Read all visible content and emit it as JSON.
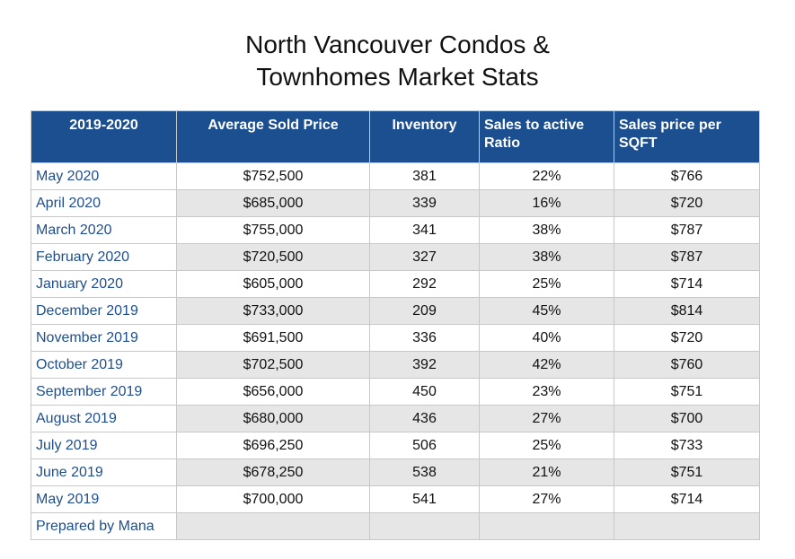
{
  "title": {
    "line1": "North Vancouver Condos &",
    "line2": "Townhomes Market Stats"
  },
  "table": {
    "headers": [
      "2019-2020",
      "Average Sold Price",
      "Inventory",
      "Sales to active Ratio",
      "Sales price per SQFT"
    ],
    "rows": [
      [
        "May 2020",
        "$752,500",
        "381",
        "22%",
        "$766"
      ],
      [
        "April 2020",
        "$685,000",
        "339",
        "16%",
        "$720"
      ],
      [
        "March 2020",
        "$755,000",
        "341",
        "38%",
        "$787"
      ],
      [
        "February 2020",
        "$720,500",
        "327",
        "38%",
        "$787"
      ],
      [
        "January 2020",
        "$605,000",
        "292",
        "25%",
        "$714"
      ],
      [
        "December 2019",
        "$733,000",
        "209",
        "45%",
        "$814"
      ],
      [
        "November 2019",
        "$691,500",
        "336",
        "40%",
        "$720"
      ],
      [
        "October 2019",
        "$702,500",
        "392",
        "42%",
        "$760"
      ],
      [
        "September 2019",
        "$656,000",
        "450",
        "23%",
        "$751"
      ],
      [
        "August 2019",
        "$680,000",
        "436",
        "27%",
        "$700"
      ],
      [
        "July 2019",
        "$696,250",
        "506",
        "25%",
        "$733"
      ],
      [
        "June 2019",
        "$678,250",
        "538",
        "21%",
        "$751"
      ],
      [
        "May 2019",
        "$700,000",
        "541",
        "27%",
        "$714"
      ],
      [
        "Prepared by Mana",
        "",
        "",
        "",
        ""
      ]
    ]
  },
  "colors": {
    "header_bg": "#1b4f8f",
    "header_text": "#ffffff",
    "month_text": "#1f4e8c",
    "alt_row_bg": "#e6e6e6"
  }
}
